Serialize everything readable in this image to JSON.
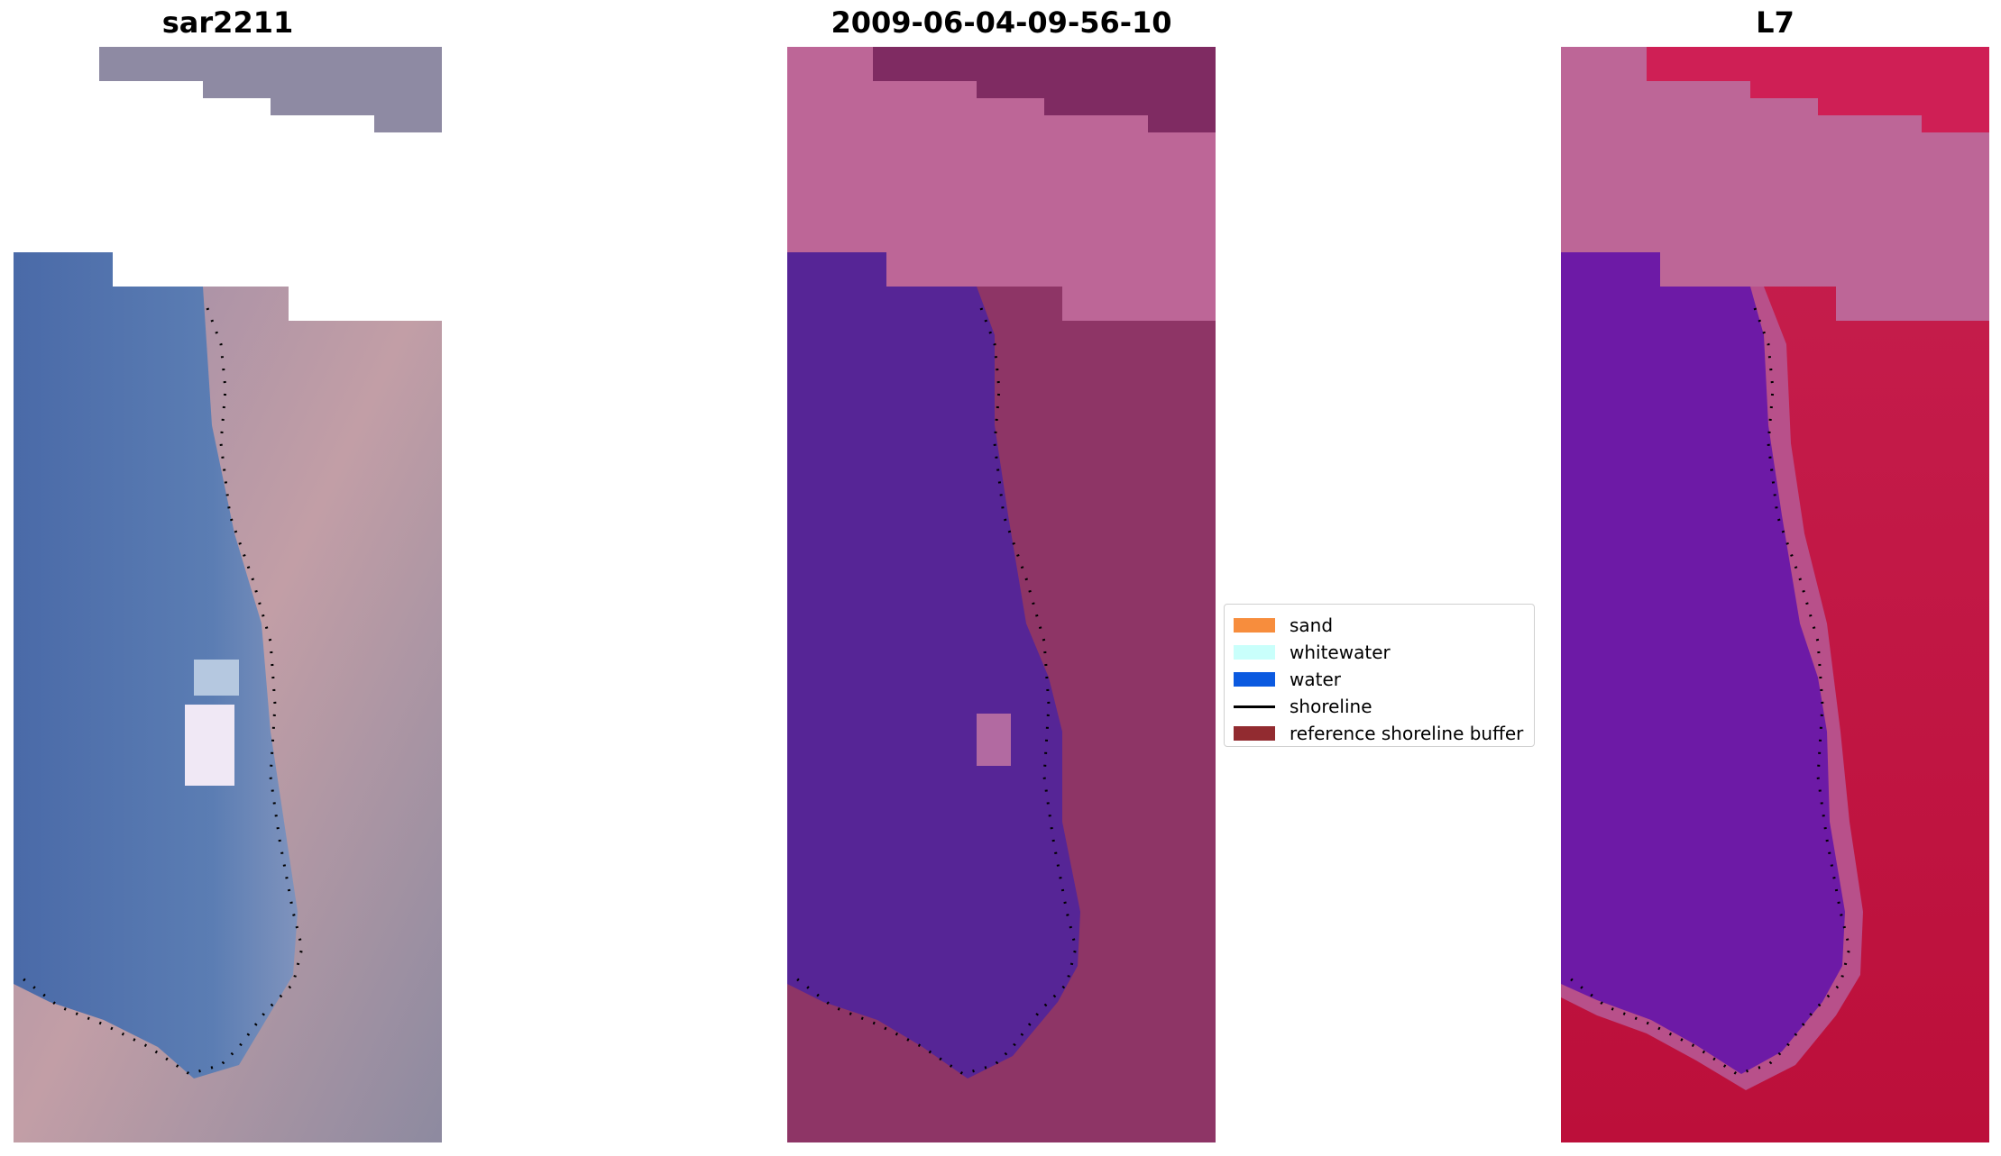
{
  "panels": [
    {
      "title": "sar2211",
      "colors": {
        "water": "#5a76ad",
        "land": "#a98e9e",
        "nodata": "#ffffff"
      }
    },
    {
      "title": "2009-06-04-09-56-10",
      "colors": {
        "water": "#562596",
        "land": "#8e3566",
        "cloud": "#bd6697"
      }
    },
    {
      "title": "L7",
      "colors": {
        "water": "#6d1aa6",
        "land": "#c0214e",
        "cloud": "#bd6697"
      }
    }
  ],
  "legend": {
    "items": [
      {
        "label": "sand",
        "color": "#f78d3d",
        "kind": "patch"
      },
      {
        "label": "whitewater",
        "color": "#c9fffb",
        "kind": "patch"
      },
      {
        "label": "water",
        "color": "#0b5ae0",
        "kind": "patch"
      },
      {
        "label": "shoreline",
        "color": "#000000",
        "kind": "line"
      },
      {
        "label": "reference shoreline buffer",
        "color": "#922b30",
        "kind": "patch"
      }
    ]
  }
}
